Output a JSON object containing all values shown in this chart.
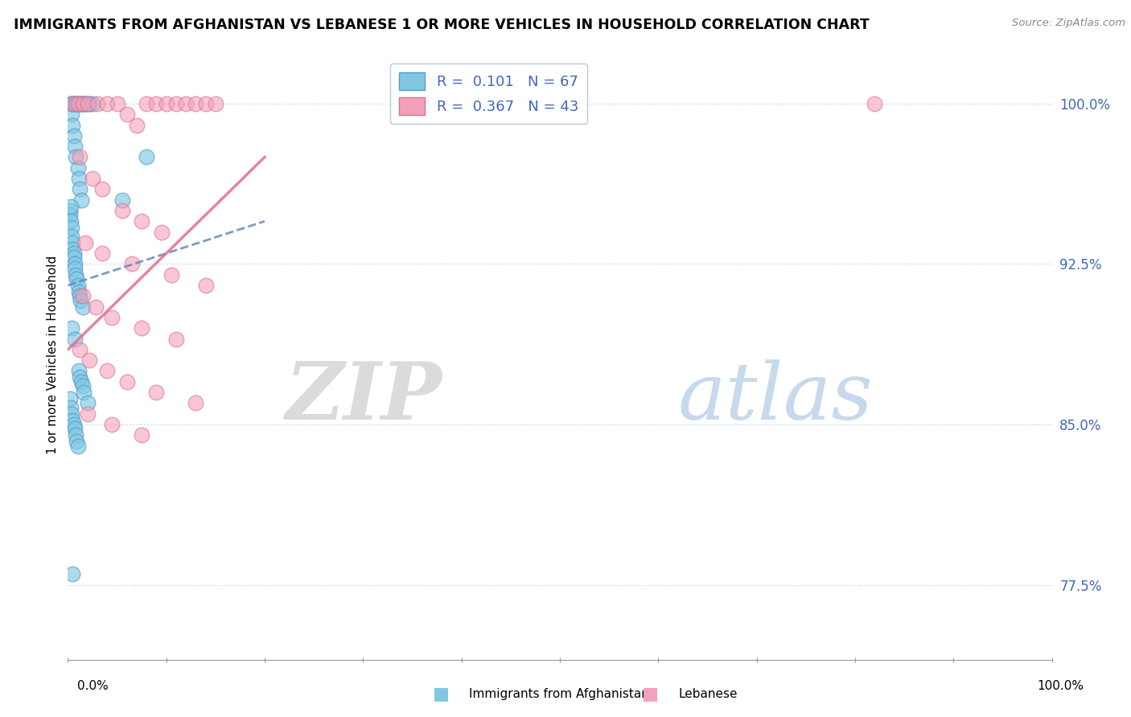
{
  "title": "IMMIGRANTS FROM AFGHANISTAN VS LEBANESE 1 OR MORE VEHICLES IN HOUSEHOLD CORRELATION CHART",
  "source": "Source: ZipAtlas.com",
  "ylabel": "1 or more Vehicles in Household",
  "xlim": [
    0.0,
    100.0
  ],
  "ylim": [
    74.0,
    102.5
  ],
  "yticks": [
    77.5,
    85.0,
    92.5,
    100.0
  ],
  "legend_r1": "R =  0.101",
  "legend_n1": "N = 67",
  "legend_r2": "R =  0.367",
  "legend_n2": "N = 43",
  "color_blue": "#7ec8e3",
  "color_blue_edge": "#5599cc",
  "color_pink": "#f4a0b8",
  "color_pink_edge": "#e07090",
  "color_blue_line": "#6688bb",
  "color_pink_line": "#e07090",
  "color_ytick": "#4466bb",
  "watermark_zip": "ZIP",
  "watermark_atlas": "atlas",
  "blue_line_x": [
    0.0,
    20.0
  ],
  "blue_line_y": [
    91.5,
    94.5
  ],
  "pink_line_x": [
    0.0,
    20.0
  ],
  "pink_line_y": [
    88.5,
    97.5
  ],
  "blue_x": [
    0.3,
    0.4,
    0.4,
    0.5,
    0.5,
    0.6,
    0.6,
    0.7,
    0.7,
    0.8,
    0.8,
    0.9,
    1.0,
    1.0,
    1.1,
    1.1,
    1.2,
    1.2,
    1.3,
    1.4,
    1.4,
    1.5,
    1.6,
    1.7,
    1.8,
    2.0,
    2.2,
    2.5,
    0.2,
    0.2,
    0.3,
    0.3,
    0.4,
    0.4,
    0.5,
    0.5,
    0.6,
    0.6,
    0.7,
    0.7,
    0.8,
    0.9,
    1.0,
    1.1,
    1.2,
    1.3,
    1.5,
    5.5,
    8.0,
    0.2,
    0.3,
    0.4,
    0.5,
    0.6,
    0.7,
    0.8,
    0.9,
    1.0,
    1.1,
    1.2,
    1.4,
    1.5,
    1.6,
    2.0,
    0.4,
    0.7,
    0.5
  ],
  "blue_y": [
    100.0,
    100.0,
    99.5,
    100.0,
    99.0,
    100.0,
    98.5,
    100.0,
    98.0,
    100.0,
    97.5,
    100.0,
    100.0,
    97.0,
    100.0,
    96.5,
    100.0,
    96.0,
    100.0,
    100.0,
    95.5,
    100.0,
    100.0,
    100.0,
    100.0,
    100.0,
    100.0,
    100.0,
    95.0,
    94.8,
    95.2,
    94.5,
    94.2,
    93.8,
    93.5,
    93.2,
    93.0,
    92.8,
    92.5,
    92.3,
    92.0,
    91.8,
    91.5,
    91.2,
    91.0,
    90.8,
    90.5,
    95.5,
    97.5,
    86.2,
    85.8,
    85.5,
    85.2,
    85.0,
    84.8,
    84.5,
    84.2,
    84.0,
    87.5,
    87.2,
    87.0,
    86.8,
    86.5,
    86.0,
    89.5,
    89.0,
    78.0
  ],
  "pink_x": [
    0.5,
    1.0,
    1.5,
    2.0,
    3.0,
    4.0,
    5.0,
    6.0,
    7.0,
    8.0,
    9.0,
    10.0,
    11.0,
    12.0,
    13.0,
    14.0,
    15.0,
    1.2,
    2.5,
    3.5,
    5.5,
    7.5,
    9.5,
    1.8,
    3.5,
    6.5,
    10.5,
    14.0,
    1.5,
    2.8,
    4.5,
    7.5,
    11.0,
    1.2,
    2.2,
    4.0,
    6.0,
    9.0,
    13.0,
    2.0,
    4.5,
    7.5,
    82.0
  ],
  "pink_y": [
    100.0,
    100.0,
    100.0,
    100.0,
    100.0,
    100.0,
    100.0,
    99.5,
    99.0,
    100.0,
    100.0,
    100.0,
    100.0,
    100.0,
    100.0,
    100.0,
    100.0,
    97.5,
    96.5,
    96.0,
    95.0,
    94.5,
    94.0,
    93.5,
    93.0,
    92.5,
    92.0,
    91.5,
    91.0,
    90.5,
    90.0,
    89.5,
    89.0,
    88.5,
    88.0,
    87.5,
    87.0,
    86.5,
    86.0,
    85.5,
    85.0,
    84.5,
    100.0
  ]
}
